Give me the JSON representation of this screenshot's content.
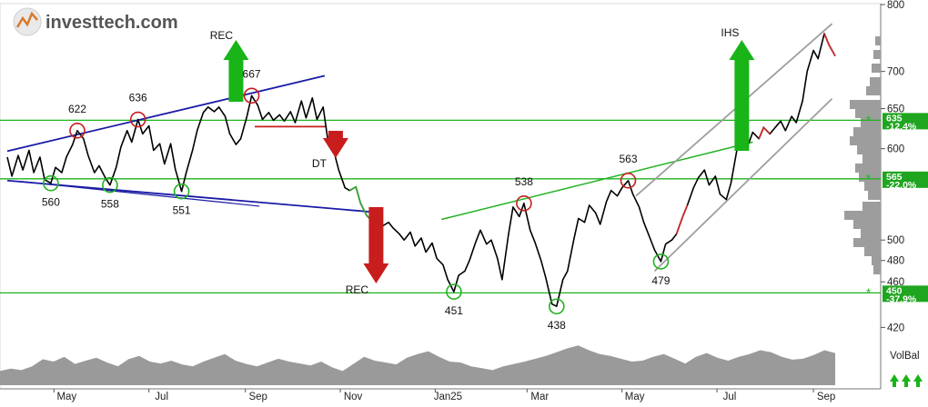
{
  "brand": {
    "name": "investtech.com"
  },
  "chart_data": {
    "type": "line",
    "title": "",
    "xlabel": "",
    "ylabel": "",
    "ylim": [
      415,
      800
    ],
    "y_scale": "log",
    "y_ticks": [
      420,
      460,
      480,
      500,
      600,
      650,
      700,
      800
    ],
    "y_tick_labels": [
      "420",
      "460",
      "480",
      "500",
      "600",
      "650",
      "700",
      "800"
    ],
    "x_tick_labels": [
      "May",
      "Jul",
      "Sep",
      "Nov",
      "Jan25",
      "Mar",
      "May",
      "Jul",
      "Sep"
    ],
    "grid": false,
    "price_series": [
      {
        "d": "2024-04-01",
        "v": 590
      },
      {
        "d": "2024-04-04",
        "v": 568
      },
      {
        "d": "2024-04-08",
        "v": 592
      },
      {
        "d": "2024-04-11",
        "v": 575
      },
      {
        "d": "2024-04-15",
        "v": 598
      },
      {
        "d": "2024-04-18",
        "v": 572
      },
      {
        "d": "2024-04-22",
        "v": 590
      },
      {
        "d": "2024-04-25",
        "v": 564
      },
      {
        "d": "2024-04-29",
        "v": 560
      },
      {
        "d": "2024-05-02",
        "v": 578
      },
      {
        "d": "2024-05-06",
        "v": 572
      },
      {
        "d": "2024-05-09",
        "v": 590
      },
      {
        "d": "2024-05-13",
        "v": 605
      },
      {
        "d": "2024-05-16",
        "v": 622
      },
      {
        "d": "2024-05-20",
        "v": 612
      },
      {
        "d": "2024-05-23",
        "v": 592
      },
      {
        "d": "2024-05-27",
        "v": 572
      },
      {
        "d": "2024-05-30",
        "v": 580
      },
      {
        "d": "2024-06-03",
        "v": 566
      },
      {
        "d": "2024-06-06",
        "v": 558
      },
      {
        "d": "2024-06-10",
        "v": 578
      },
      {
        "d": "2024-06-13",
        "v": 602
      },
      {
        "d": "2024-06-17",
        "v": 622
      },
      {
        "d": "2024-06-20",
        "v": 608
      },
      {
        "d": "2024-06-24",
        "v": 636
      },
      {
        "d": "2024-06-27",
        "v": 618
      },
      {
        "d": "2024-07-01",
        "v": 628
      },
      {
        "d": "2024-07-04",
        "v": 598
      },
      {
        "d": "2024-07-08",
        "v": 606
      },
      {
        "d": "2024-07-11",
        "v": 582
      },
      {
        "d": "2024-07-15",
        "v": 606
      },
      {
        "d": "2024-07-18",
        "v": 576
      },
      {
        "d": "2024-07-22",
        "v": 551
      },
      {
        "d": "2024-07-25",
        "v": 572
      },
      {
        "d": "2024-07-29",
        "v": 598
      },
      {
        "d": "2024-08-01",
        "v": 622
      },
      {
        "d": "2024-08-05",
        "v": 645
      },
      {
        "d": "2024-08-08",
        "v": 652
      },
      {
        "d": "2024-08-12",
        "v": 646
      },
      {
        "d": "2024-08-15",
        "v": 652
      },
      {
        "d": "2024-08-19",
        "v": 640
      },
      {
        "d": "2024-08-22",
        "v": 618
      },
      {
        "d": "2024-08-26",
        "v": 605
      },
      {
        "d": "2024-08-29",
        "v": 612
      },
      {
        "d": "2024-09-02",
        "v": 640
      },
      {
        "d": "2024-09-05",
        "v": 667
      },
      {
        "d": "2024-09-09",
        "v": 654
      },
      {
        "d": "2024-09-12",
        "v": 636
      },
      {
        "d": "2024-09-16",
        "v": 645
      },
      {
        "d": "2024-09-19",
        "v": 635
      },
      {
        "d": "2024-09-23",
        "v": 642
      },
      {
        "d": "2024-09-26",
        "v": 634
      },
      {
        "d": "2024-09-30",
        "v": 646
      },
      {
        "d": "2024-10-03",
        "v": 632
      },
      {
        "d": "2024-10-07",
        "v": 660
      },
      {
        "d": "2024-10-10",
        "v": 638
      },
      {
        "d": "2024-10-14",
        "v": 664
      },
      {
        "d": "2024-10-17",
        "v": 636
      },
      {
        "d": "2024-10-21",
        "v": 652
      },
      {
        "d": "2024-10-24",
        "v": 610
      },
      {
        "d": "2024-10-28",
        "v": 596
      },
      {
        "d": "2024-10-31",
        "v": 575
      },
      {
        "d": "2024-11-04",
        "v": 555
      },
      {
        "d": "2024-11-07",
        "v": 552
      },
      {
        "d": "2024-11-11",
        "v": 556
      },
      {
        "d": "2024-11-14",
        "v": 538
      },
      {
        "d": "2024-11-18",
        "v": 525
      },
      {
        "d": "2024-11-21",
        "v": 520
      },
      {
        "d": "2024-11-25",
        "v": 510
      },
      {
        "d": "2024-11-28",
        "v": 514
      },
      {
        "d": "2024-12-02",
        "v": 518
      },
      {
        "d": "2024-12-05",
        "v": 512
      },
      {
        "d": "2024-12-09",
        "v": 506
      },
      {
        "d": "2024-12-12",
        "v": 500
      },
      {
        "d": "2024-12-16",
        "v": 508
      },
      {
        "d": "2024-12-19",
        "v": 494
      },
      {
        "d": "2024-12-23",
        "v": 502
      },
      {
        "d": "2024-12-26",
        "v": 488
      },
      {
        "d": "2024-12-30",
        "v": 497
      },
      {
        "d": "2025-01-02",
        "v": 482
      },
      {
        "d": "2025-01-06",
        "v": 476
      },
      {
        "d": "2025-01-09",
        "v": 462
      },
      {
        "d": "2025-01-13",
        "v": 451
      },
      {
        "d": "2025-01-16",
        "v": 466
      },
      {
        "d": "2025-01-20",
        "v": 470
      },
      {
        "d": "2025-01-23",
        "v": 480
      },
      {
        "d": "2025-01-27",
        "v": 498
      },
      {
        "d": "2025-01-30",
        "v": 510
      },
      {
        "d": "2025-02-03",
        "v": 496
      },
      {
        "d": "2025-02-06",
        "v": 500
      },
      {
        "d": "2025-02-10",
        "v": 482
      },
      {
        "d": "2025-02-13",
        "v": 462
      },
      {
        "d": "2025-02-17",
        "v": 505
      },
      {
        "d": "2025-02-20",
        "v": 534
      },
      {
        "d": "2025-02-24",
        "v": 524
      },
      {
        "d": "2025-02-27",
        "v": 538
      },
      {
        "d": "2025-03-03",
        "v": 510
      },
      {
        "d": "2025-03-06",
        "v": 498
      },
      {
        "d": "2025-03-10",
        "v": 480
      },
      {
        "d": "2025-03-13",
        "v": 464
      },
      {
        "d": "2025-03-17",
        "v": 440
      },
      {
        "d": "2025-03-20",
        "v": 438
      },
      {
        "d": "2025-03-24",
        "v": 462
      },
      {
        "d": "2025-03-27",
        "v": 470
      },
      {
        "d": "2025-03-31",
        "v": 500
      },
      {
        "d": "2025-04-03",
        "v": 522
      },
      {
        "d": "2025-04-07",
        "v": 518
      },
      {
        "d": "2025-04-10",
        "v": 536
      },
      {
        "d": "2025-04-14",
        "v": 528
      },
      {
        "d": "2025-04-17",
        "v": 516
      },
      {
        "d": "2025-04-21",
        "v": 540
      },
      {
        "d": "2025-04-24",
        "v": 552
      },
      {
        "d": "2025-04-28",
        "v": 546
      },
      {
        "d": "2025-05-01",
        "v": 555
      },
      {
        "d": "2025-05-05",
        "v": 563
      },
      {
        "d": "2025-05-08",
        "v": 548
      },
      {
        "d": "2025-05-12",
        "v": 534
      },
      {
        "d": "2025-05-15",
        "v": 518
      },
      {
        "d": "2025-05-19",
        "v": 502
      },
      {
        "d": "2025-05-22",
        "v": 490
      },
      {
        "d": "2025-05-26",
        "v": 479
      },
      {
        "d": "2025-05-29",
        "v": 496
      },
      {
        "d": "2025-06-02",
        "v": 500
      },
      {
        "d": "2025-06-05",
        "v": 506
      },
      {
        "d": "2025-06-09",
        "v": 524
      },
      {
        "d": "2025-06-12",
        "v": 536
      },
      {
        "d": "2025-06-16",
        "v": 555
      },
      {
        "d": "2025-06-19",
        "v": 566
      },
      {
        "d": "2025-06-23",
        "v": 575
      },
      {
        "d": "2025-06-26",
        "v": 558
      },
      {
        "d": "2025-06-30",
        "v": 568
      },
      {
        "d": "2025-07-03",
        "v": 548
      },
      {
        "d": "2025-07-07",
        "v": 542
      },
      {
        "d": "2025-07-10",
        "v": 560
      },
      {
        "d": "2025-07-14",
        "v": 600
      },
      {
        "d": "2025-07-17",
        "v": 612
      },
      {
        "d": "2025-07-21",
        "v": 604
      },
      {
        "d": "2025-07-24",
        "v": 620
      },
      {
        "d": "2025-07-28",
        "v": 612
      },
      {
        "d": "2025-07-31",
        "v": 626
      },
      {
        "d": "2025-08-04",
        "v": 618
      },
      {
        "d": "2025-08-07",
        "v": 625
      },
      {
        "d": "2025-08-11",
        "v": 634
      },
      {
        "d": "2025-08-14",
        "v": 622
      },
      {
        "d": "2025-08-18",
        "v": 640
      },
      {
        "d": "2025-08-21",
        "v": 632
      },
      {
        "d": "2025-08-25",
        "v": 660
      },
      {
        "d": "2025-08-28",
        "v": 700
      },
      {
        "d": "2025-09-01",
        "v": 730
      },
      {
        "d": "2025-09-04",
        "v": 718
      },
      {
        "d": "2025-09-08",
        "v": 755
      },
      {
        "d": "2025-09-11",
        "v": 738
      },
      {
        "d": "2025-09-15",
        "v": 722
      }
    ],
    "volume_balance": [
      0.3,
      0.35,
      0.32,
      0.4,
      0.55,
      0.5,
      0.6,
      0.45,
      0.52,
      0.58,
      0.48,
      0.4,
      0.55,
      0.62,
      0.5,
      0.46,
      0.52,
      0.44,
      0.4,
      0.5,
      0.58,
      0.66,
      0.52,
      0.45,
      0.4,
      0.48,
      0.56,
      0.5,
      0.46,
      0.42,
      0.5,
      0.38,
      0.3,
      0.45,
      0.6,
      0.52,
      0.48,
      0.44,
      0.58,
      0.66,
      0.72,
      0.6,
      0.5,
      0.48,
      0.4,
      0.36,
      0.32,
      0.4,
      0.45,
      0.5,
      0.56,
      0.62,
      0.7,
      0.78,
      0.84,
      0.74,
      0.66,
      0.62,
      0.56,
      0.5,
      0.52,
      0.6,
      0.66,
      0.56,
      0.46,
      0.6,
      0.68,
      0.58,
      0.52,
      0.6,
      0.66,
      0.74,
      0.7,
      0.6,
      0.54,
      0.56,
      0.64,
      0.74,
      0.68
    ],
    "horizontal_levels": [
      {
        "value": 635,
        "label": "635",
        "pct": "-12.4%"
      },
      {
        "value": 565,
        "label": "565",
        "pct": "-22.0%"
      },
      {
        "value": 450,
        "label": "450",
        "pct": "-37.9%"
      }
    ],
    "annotations": {
      "peaks": [
        "622",
        "636",
        "667",
        "538",
        "563"
      ],
      "troughs": [
        "560",
        "558",
        "551",
        "451",
        "438",
        "479"
      ],
      "patterns": [
        "REC",
        "DT",
        "REC",
        "IHS"
      ]
    },
    "volume_label": "VolBal",
    "colors": {
      "price": "#000000",
      "price_up": "#3aa43a",
      "price_down": "#c92b2b",
      "support": "#1fb31f",
      "trend": "#1a1aa6",
      "channel": "#9e9e9e",
      "arrow_up": "#18b418",
      "arrow_down": "#c81d1d",
      "volume": "#9a9a9a"
    }
  }
}
